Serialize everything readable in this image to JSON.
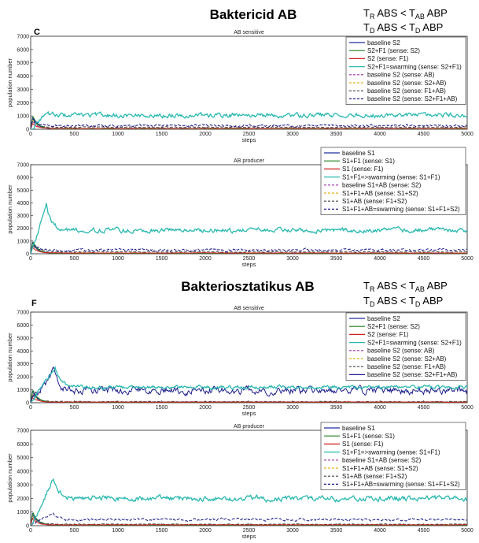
{
  "headings": {
    "top": "Baktericid  AB",
    "bottom": "Bakteriosztatikus  AB"
  },
  "notes": [
    {
      "l1_a": "T",
      "l1_a_sub": "R",
      "l1_b": " ABS < T",
      "l1_b_sub": "AB",
      "l1_c": " ABP",
      "l2_a": "T",
      "l2_a_sub": "D",
      "l2_b": " ABS < T",
      "l2_b_sub": "D",
      "l2_c": " ABP"
    },
    {
      "l1_a": "T",
      "l1_a_sub": "R",
      "l1_b": " ABS < T",
      "l1_b_sub": "AB",
      "l1_c": " ABP",
      "l2_a": "T",
      "l2_a_sub": "D",
      "l2_b": " ABS < T",
      "l2_b_sub": "D",
      "l2_c": " ABP"
    }
  ],
  "panel_letters": [
    "C",
    "F"
  ],
  "colors": {
    "navy": "#1f2f9f",
    "green": "#1f7f1f",
    "red": "#d01f1f",
    "cyan": "#2ab8b0",
    "magenta": "#9a2fa0",
    "gold": "#e0b51f",
    "darkgray": "#444444",
    "darknavy": "#1c1c8a"
  },
  "chart_data": [
    {
      "type": "line",
      "title": "AB sensitive",
      "xlabel": "steps",
      "ylabel": "population number",
      "xlim": [
        0,
        5000
      ],
      "ylim": [
        0,
        7000
      ],
      "xticks": [
        0,
        500,
        1000,
        1500,
        2000,
        2500,
        3000,
        3500,
        4000,
        4500,
        5000
      ],
      "yticks": [
        0,
        1000,
        2000,
        3000,
        4000,
        5000,
        6000,
        7000
      ],
      "grid": false,
      "legend_position": "top-right",
      "series": [
        {
          "name": "baseline S2",
          "color": "navy",
          "style": "solid",
          "profile": {
            "peak": 900,
            "peak_at": 20,
            "level": 30,
            "noise": 10
          }
        },
        {
          "name": "S2+F1 (sense: S2)",
          "color": "green",
          "style": "solid",
          "profile": {
            "peak": 1000,
            "peak_at": 25,
            "level": 30,
            "noise": 10
          }
        },
        {
          "name": "S2 (sense: F1)",
          "color": "red",
          "style": "solid",
          "profile": {
            "peak": 400,
            "peak_at": 20,
            "level": 60,
            "noise": 12
          }
        },
        {
          "name": "S2+F1=swarming (sense: S2+F1)",
          "color": "cyan",
          "style": "solid",
          "profile": {
            "peak": 1250,
            "peak_at": 180,
            "level": 1050,
            "noise": 130
          }
        },
        {
          "name": "baseline S2 (sense: AB)",
          "color": "magenta",
          "style": "dashed",
          "profile": {
            "peak": 600,
            "peak_at": 20,
            "level": 50,
            "noise": 12
          }
        },
        {
          "name": "baseline S2 (sense: S2+AB)",
          "color": "gold",
          "style": "dashed",
          "profile": {
            "peak": 700,
            "peak_at": 20,
            "level": 50,
            "noise": 12
          }
        },
        {
          "name": "baseline S2 (sense: F1+AB)",
          "color": "darkgray",
          "style": "dashed",
          "profile": {
            "peak": 700,
            "peak_at": 25,
            "level": 150,
            "noise": 25
          }
        },
        {
          "name": "baseline S2 (sense: S2+F1+AB)",
          "color": "darknavy",
          "style": "dashed",
          "profile": {
            "peak": 800,
            "peak_at": 25,
            "level": 280,
            "noise": 70
          }
        }
      ]
    },
    {
      "type": "line",
      "title": "AB producer",
      "xlabel": "steps",
      "ylabel": "population number",
      "xlim": [
        0,
        5000
      ],
      "ylim": [
        0,
        7000
      ],
      "xticks": [
        0,
        500,
        1000,
        1500,
        2000,
        2500,
        3000,
        3500,
        4000,
        4500,
        5000
      ],
      "yticks": [
        0,
        1000,
        2000,
        3000,
        4000,
        5000,
        6000,
        7000
      ],
      "grid": false,
      "legend_position": "top-right",
      "series": [
        {
          "name": "baseline S1",
          "color": "navy",
          "style": "solid",
          "profile": {
            "peak": 900,
            "peak_at": 20,
            "level": 30,
            "noise": 10
          }
        },
        {
          "name": "S1+F1 (sense: S1)",
          "color": "green",
          "style": "solid",
          "profile": {
            "peak": 1000,
            "peak_at": 25,
            "level": 30,
            "noise": 10
          }
        },
        {
          "name": "S1 (sense: F1)",
          "color": "red",
          "style": "solid",
          "profile": {
            "peak": 500,
            "peak_at": 20,
            "level": 60,
            "noise": 12
          }
        },
        {
          "name": "S1+F1=>swarming (sense: S1+F1)",
          "color": "cyan",
          "style": "solid",
          "profile": {
            "peak": 3800,
            "peak_at": 180,
            "level": 1850,
            "noise": 140
          }
        },
        {
          "name": "baseline S1+AB (sense: S2)",
          "color": "magenta",
          "style": "dashed",
          "profile": {
            "peak": 700,
            "peak_at": 20,
            "level": 60,
            "noise": 12
          }
        },
        {
          "name": "S1+F1+AB (sense: S1+S2)",
          "color": "gold",
          "style": "dashed",
          "profile": {
            "peak": 700,
            "peak_at": 20,
            "level": 60,
            "noise": 12
          }
        },
        {
          "name": "S1+AB (sense: F1+S2)",
          "color": "darkgray",
          "style": "dashed",
          "profile": {
            "peak": 700,
            "peak_at": 25,
            "level": 150,
            "noise": 25
          }
        },
        {
          "name": "S1+F1+AB=swarming (sense: S1+F1+S2)",
          "color": "darknavy",
          "style": "dashed",
          "profile": {
            "peak": 800,
            "peak_at": 25,
            "level": 300,
            "noise": 70
          }
        }
      ]
    },
    {
      "type": "line",
      "title": "AB sensitive",
      "xlabel": "steps",
      "ylabel": "population number",
      "xlim": [
        0,
        5000
      ],
      "ylim": [
        0,
        7000
      ],
      "xticks": [
        0,
        500,
        1000,
        1500,
        2000,
        2500,
        3000,
        3500,
        4000,
        4500,
        5000
      ],
      "yticks": [
        0,
        1000,
        2000,
        3000,
        4000,
        5000,
        6000,
        7000
      ],
      "grid": false,
      "legend_position": "top-right",
      "series": [
        {
          "name": "baseline S2",
          "color": "navy",
          "style": "solid",
          "profile": {
            "peak": 900,
            "peak_at": 20,
            "level": 30,
            "noise": 10
          }
        },
        {
          "name": "S2+F1 (sense: S2)",
          "color": "green",
          "style": "solid",
          "profile": {
            "peak": 1000,
            "peak_at": 25,
            "level": 30,
            "noise": 10
          }
        },
        {
          "name": "S2 (sense: F1)",
          "color": "red",
          "style": "solid",
          "profile": {
            "peak": 400,
            "peak_at": 20,
            "level": 50,
            "noise": 12
          }
        },
        {
          "name": "S2+F1=swarming (sense: S2+F1)",
          "color": "cyan",
          "style": "solid",
          "profile": {
            "peak": 2700,
            "peak_at": 280,
            "level": 1200,
            "noise": 110
          }
        },
        {
          "name": "baseline S2 (sense: AB)",
          "color": "magenta",
          "style": "dashed",
          "profile": {
            "peak": 600,
            "peak_at": 20,
            "level": 50,
            "noise": 12
          }
        },
        {
          "name": "baseline S2 (sense: S2+AB)",
          "color": "gold",
          "style": "dashed",
          "profile": {
            "peak": 700,
            "peak_at": 20,
            "level": 50,
            "noise": 12
          }
        },
        {
          "name": "baseline S2 (sense: F1+AB)",
          "color": "darkgray",
          "style": "dashed",
          "profile": {
            "peak": 700,
            "peak_at": 25,
            "level": 80,
            "noise": 20
          }
        },
        {
          "name": "baseline S2 (sense: S2+F1+AB)",
          "color": "darknavy",
          "style": "solid",
          "profile": {
            "peak": 2400,
            "peak_at": 260,
            "level": 950,
            "noise": 230
          }
        }
      ]
    },
    {
      "type": "line",
      "title": "AB producer",
      "xlabel": "steps",
      "ylabel": "population number",
      "xlim": [
        0,
        5000
      ],
      "ylim": [
        0,
        7000
      ],
      "xticks": [
        0,
        500,
        1000,
        1500,
        2000,
        2500,
        3000,
        3500,
        4000,
        4500,
        5000
      ],
      "yticks": [
        0,
        1000,
        2000,
        3000,
        4000,
        5000,
        6000,
        7000
      ],
      "grid": false,
      "legend_position": "top-right",
      "series": [
        {
          "name": "baseline S1",
          "color": "navy",
          "style": "solid",
          "profile": {
            "peak": 900,
            "peak_at": 20,
            "level": 30,
            "noise": 10
          }
        },
        {
          "name": "S1+F1 (sense: S1)",
          "color": "green",
          "style": "solid",
          "profile": {
            "peak": 1000,
            "peak_at": 25,
            "level": 30,
            "noise": 10
          }
        },
        {
          "name": "S1 (sense: F1)",
          "color": "red",
          "style": "solid",
          "profile": {
            "peak": 500,
            "peak_at": 20,
            "level": 60,
            "noise": 12
          }
        },
        {
          "name": "S1+F1=>swarming (sense: S1+F1)",
          "color": "cyan",
          "style": "solid",
          "profile": {
            "peak": 3400,
            "peak_at": 260,
            "level": 2000,
            "noise": 150
          }
        },
        {
          "name": "baseline S1+AB (sense: S2)",
          "color": "magenta",
          "style": "dashed",
          "profile": {
            "peak": 700,
            "peak_at": 20,
            "level": 60,
            "noise": 12
          }
        },
        {
          "name": "S1+F1+AB (sense: S1+S2)",
          "color": "gold",
          "style": "dashed",
          "profile": {
            "peak": 700,
            "peak_at": 20,
            "level": 60,
            "noise": 12
          }
        },
        {
          "name": "S1+AB (sense: F1+S2)",
          "color": "darkgray",
          "style": "dashed",
          "profile": {
            "peak": 700,
            "peak_at": 25,
            "level": 100,
            "noise": 20
          }
        },
        {
          "name": "S1+F1+AB=swarming (sense: S1+F1+S2)",
          "color": "darknavy",
          "style": "dashed",
          "profile": {
            "peak": 950,
            "peak_at": 260,
            "level": 450,
            "noise": 70
          }
        }
      ]
    }
  ]
}
